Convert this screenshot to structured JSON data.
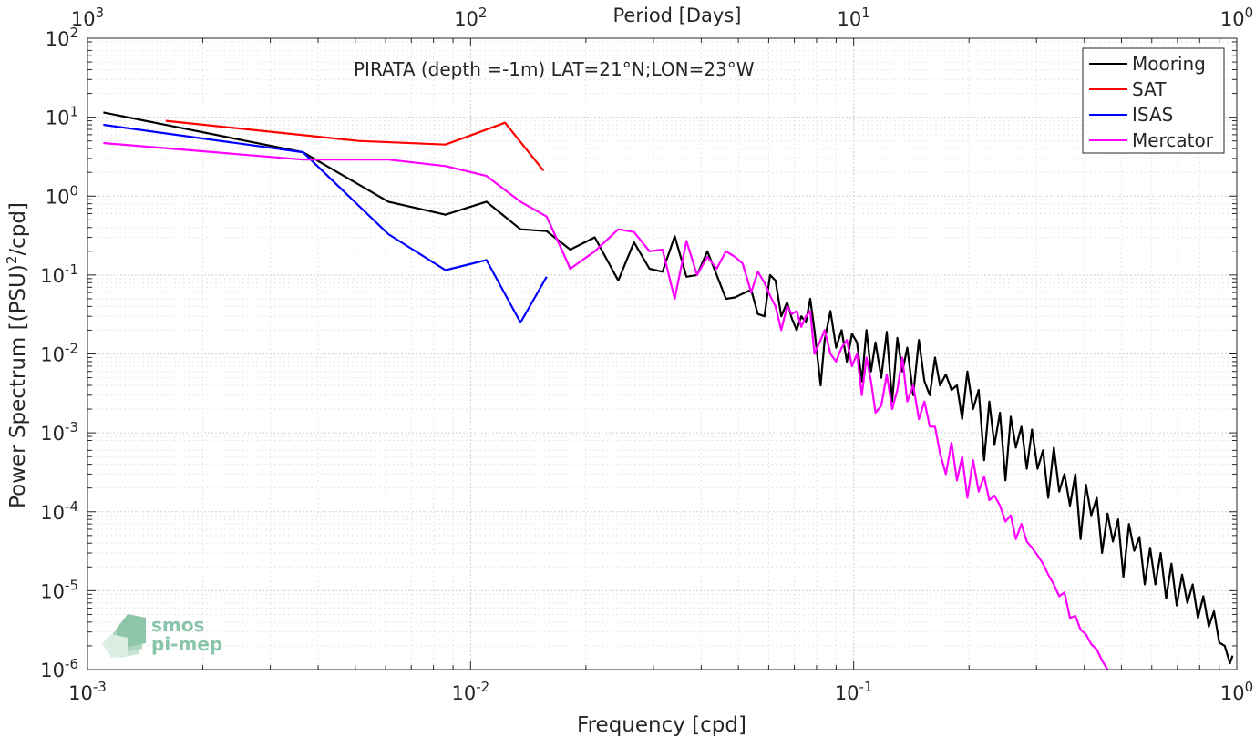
{
  "chart_data": {
    "type": "line",
    "title": "PIRATA (depth =-1m) LAT=21°N;LON=23°W",
    "xlabel": "Frequency [cpd]",
    "ylabel_main": "Power Spectrum [(PSU)",
    "ylabel_sup": "2",
    "ylabel_tail": "/cpd]",
    "top_xlabel": "Period [Days]",
    "xscale": "log",
    "yscale": "log",
    "xlim": [
      0.001,
      1
    ],
    "ylim": [
      1e-06,
      100
    ],
    "grid": true,
    "legend_position": "top-right",
    "x_ticks": [
      {
        "base": "10",
        "exp": "-3",
        "value": 0.001
      },
      {
        "base": "10",
        "exp": "-2",
        "value": 0.01
      },
      {
        "base": "10",
        "exp": "-1",
        "value": 0.1
      },
      {
        "base": "10",
        "exp": "0",
        "value": 1
      }
    ],
    "top_ticks": [
      {
        "base": "10",
        "exp": "3",
        "value": 0.001
      },
      {
        "base": "10",
        "exp": "2",
        "value": 0.01
      },
      {
        "base": "10",
        "exp": "1",
        "value": 0.1
      },
      {
        "base": "10",
        "exp": "0",
        "value": 1
      }
    ],
    "y_ticks": [
      {
        "base": "10",
        "exp": "2",
        "value": 100
      },
      {
        "base": "10",
        "exp": "1",
        "value": 10
      },
      {
        "base": "10",
        "exp": "0",
        "value": 1
      },
      {
        "base": "10",
        "exp": "-1",
        "value": 0.1
      },
      {
        "base": "10",
        "exp": "-2",
        "value": 0.01
      },
      {
        "base": "10",
        "exp": "-3",
        "value": 0.001
      },
      {
        "base": "10",
        "exp": "-4",
        "value": 0.0001
      },
      {
        "base": "10",
        "exp": "-5",
        "value": 1e-05
      },
      {
        "base": "10",
        "exp": "-6",
        "value": 1e-06
      }
    ],
    "series": [
      {
        "name": "Mooring",
        "color": "#000000",
        "x": [
          0.0011,
          0.00365,
          0.0061,
          0.0086,
          0.011,
          0.0135,
          0.0158,
          0.0182,
          0.0211,
          0.0243,
          0.0267,
          0.0293,
          0.0317,
          0.0341,
          0.0366,
          0.039,
          0.0415,
          0.0439,
          0.0464,
          0.049,
          0.0513,
          0.054,
          0.0562,
          0.0585,
          0.0605,
          0.0625,
          0.0647,
          0.067,
          0.069,
          0.071,
          0.073,
          0.075,
          0.077,
          0.079,
          0.082,
          0.084,
          0.087,
          0.09,
          0.093,
          0.096,
          0.099,
          0.102,
          0.105,
          0.108,
          0.111,
          0.114,
          0.118,
          0.122,
          0.126,
          0.13,
          0.134,
          0.138,
          0.143,
          0.148,
          0.153,
          0.158,
          0.163,
          0.168,
          0.174,
          0.18,
          0.186,
          0.192,
          0.198,
          0.205,
          0.212,
          0.219,
          0.226,
          0.233,
          0.241,
          0.249,
          0.257,
          0.265,
          0.274,
          0.283,
          0.292,
          0.302,
          0.312,
          0.322,
          0.333,
          0.344,
          0.355,
          0.367,
          0.379,
          0.391,
          0.404,
          0.417,
          0.431,
          0.445,
          0.46,
          0.475,
          0.49,
          0.506,
          0.523,
          0.54,
          0.557,
          0.575,
          0.594,
          0.613,
          0.633,
          0.654,
          0.675,
          0.697,
          0.72,
          0.743,
          0.767,
          0.792,
          0.818,
          0.845,
          0.872,
          0.9,
          0.93,
          0.96,
          0.975
        ],
        "y": [
          11.5,
          3.6,
          0.85,
          0.58,
          0.85,
          0.38,
          0.36,
          0.21,
          0.3,
          0.085,
          0.26,
          0.12,
          0.11,
          0.31,
          0.095,
          0.1,
          0.2,
          0.1,
          0.05,
          0.052,
          0.058,
          0.065,
          0.032,
          0.03,
          0.1,
          0.085,
          0.03,
          0.045,
          0.028,
          0.02,
          0.03,
          0.025,
          0.05,
          0.02,
          0.004,
          0.015,
          0.035,
          0.012,
          0.02,
          0.008,
          0.018,
          0.014,
          0.0045,
          0.02,
          0.006,
          0.014,
          0.005,
          0.019,
          0.0025,
          0.016,
          0.006,
          0.012,
          0.003,
          0.015,
          0.0045,
          0.003,
          0.009,
          0.004,
          0.0055,
          0.0035,
          0.004,
          0.0015,
          0.006,
          0.002,
          0.0035,
          0.00045,
          0.0025,
          0.0007,
          0.0018,
          0.00025,
          0.0016,
          0.00065,
          0.0012,
          0.00035,
          0.0011,
          0.00035,
          0.0006,
          0.00015,
          0.00065,
          0.00018,
          0.0003,
          0.00012,
          0.0003,
          4.5e-05,
          0.00022,
          9e-05,
          0.00015,
          3e-05,
          9.5e-05,
          4.2e-05,
          8e-05,
          1.5e-05,
          7e-05,
          3.2e-05,
          4.8e-05,
          1.2e-05,
          3.5e-05,
          1.2e-05,
          3e-05,
          8e-06,
          2.2e-05,
          6.5e-06,
          1.6e-05,
          7e-06,
          1.2e-05,
          4.5e-06,
          8.5e-06,
          3.5e-06,
          5.5e-06,
          2.2e-06,
          2e-06,
          1.2e-06,
          1.5e-06
        ]
      },
      {
        "name": "SAT",
        "color": "#ff0000",
        "x": [
          0.0016,
          0.0051,
          0.0086,
          0.0123,
          0.0155
        ],
        "y": [
          9.0,
          5.0,
          4.5,
          8.5,
          2.1
        ]
      },
      {
        "name": "ISAS",
        "color": "#0000ff",
        "x": [
          0.0011,
          0.00365,
          0.0061,
          0.0086,
          0.011,
          0.0135,
          0.0158
        ],
        "y": [
          8.0,
          3.6,
          0.33,
          0.115,
          0.155,
          0.025,
          0.095
        ]
      },
      {
        "name": "Mercator",
        "color": "#ff00ff",
        "x": [
          0.0011,
          0.00365,
          0.0061,
          0.0086,
          0.011,
          0.0135,
          0.0158,
          0.0182,
          0.0211,
          0.0243,
          0.0267,
          0.0293,
          0.0317,
          0.0341,
          0.0366,
          0.039,
          0.0415,
          0.0439,
          0.0464,
          0.049,
          0.0513,
          0.054,
          0.0562,
          0.0585,
          0.0605,
          0.0625,
          0.0647,
          0.067,
          0.069,
          0.071,
          0.073,
          0.075,
          0.077,
          0.079,
          0.082,
          0.084,
          0.087,
          0.09,
          0.093,
          0.096,
          0.099,
          0.102,
          0.105,
          0.108,
          0.111,
          0.114,
          0.118,
          0.122,
          0.126,
          0.13,
          0.134,
          0.138,
          0.143,
          0.148,
          0.153,
          0.158,
          0.163,
          0.168,
          0.174,
          0.18,
          0.186,
          0.192,
          0.198,
          0.205,
          0.212,
          0.219,
          0.226,
          0.233,
          0.241,
          0.249,
          0.257,
          0.265,
          0.274,
          0.283,
          0.292,
          0.302,
          0.312,
          0.322,
          0.333,
          0.344,
          0.355,
          0.367,
          0.379,
          0.391,
          0.404,
          0.417,
          0.431,
          0.445,
          0.46
        ],
        "y": [
          4.7,
          2.9,
          2.9,
          2.4,
          1.8,
          0.85,
          0.55,
          0.12,
          0.2,
          0.38,
          0.35,
          0.2,
          0.21,
          0.05,
          0.27,
          0.1,
          0.17,
          0.12,
          0.2,
          0.17,
          0.14,
          0.06,
          0.11,
          0.08,
          0.055,
          0.04,
          0.02,
          0.04,
          0.032,
          0.035,
          0.022,
          0.03,
          0.035,
          0.01,
          0.015,
          0.02,
          0.01,
          0.008,
          0.012,
          0.015,
          0.007,
          0.01,
          0.003,
          0.009,
          0.0045,
          0.0018,
          0.0022,
          0.0055,
          0.002,
          0.0035,
          0.009,
          0.0025,
          0.004,
          0.0015,
          0.0025,
          0.0012,
          0.0012,
          0.00055,
          0.0003,
          0.00075,
          0.00025,
          0.0005,
          0.00015,
          0.00045,
          0.00018,
          0.00028,
          0.00014,
          0.00016,
          0.00012,
          7.5e-05,
          9e-05,
          4.5e-05,
          7e-05,
          4.2e-05,
          3.5e-05,
          2.8e-05,
          2.2e-05,
          1.6e-05,
          1.2e-05,
          8.5e-06,
          9.5e-06,
          4.5e-06,
          4.8e-06,
          3.2e-06,
          2.8e-06,
          2.1e-06,
          1.8e-06,
          1.3e-06,
          1e-06
        ]
      }
    ]
  },
  "watermark": {
    "line1": "smos",
    "line2": "pi-mep",
    "color": "#5fae88"
  }
}
